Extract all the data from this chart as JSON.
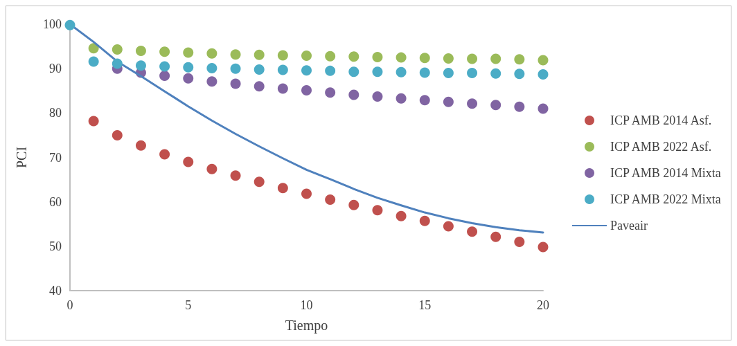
{
  "chart_data": {
    "type": "scatter",
    "xlabel": "Tiempo",
    "ylabel": "PCI",
    "x": [
      0,
      1,
      2,
      3,
      4,
      5,
      6,
      7,
      8,
      9,
      10,
      11,
      12,
      13,
      14,
      15,
      16,
      17,
      18,
      19,
      20
    ],
    "xlim": [
      0,
      20
    ],
    "xticks": [
      0,
      5,
      10,
      15,
      20
    ],
    "ylim": [
      40,
      100
    ],
    "yticks": [
      40,
      50,
      60,
      70,
      80,
      90,
      100
    ],
    "grid": false,
    "legend": "right",
    "marker": "circle",
    "series": [
      {
        "name": "ICP AMB 2014 Asf.",
        "color": "#c0504d",
        "values": [
          null,
          78.2,
          75.0,
          72.7,
          70.7,
          69.0,
          67.4,
          65.9,
          64.5,
          63.1,
          61.8,
          60.5,
          59.3,
          58.1,
          56.8,
          55.7,
          54.5,
          53.3,
          52.1,
          51.0,
          49.8
        ]
      },
      {
        "name": "ICP AMB 2022 Asf.",
        "color": "#9bbb59",
        "values": [
          null,
          94.6,
          94.3,
          94.0,
          93.8,
          93.6,
          93.4,
          93.2,
          93.1,
          93.0,
          92.9,
          92.8,
          92.7,
          92.6,
          92.5,
          92.4,
          92.3,
          92.2,
          92.2,
          92.1,
          91.9
        ]
      },
      {
        "name": "ICP AMB 2014 Mixta",
        "color": "#8064a2",
        "values": [
          null,
          null,
          90.0,
          89.1,
          88.4,
          87.8,
          87.1,
          86.6,
          86.0,
          85.5,
          85.1,
          84.6,
          84.1,
          83.7,
          83.3,
          82.9,
          82.5,
          82.1,
          81.8,
          81.4,
          81.0
        ]
      },
      {
        "name": "ICP AMB 2022 Mixta",
        "color": "#4bacc6",
        "values": [
          99.8,
          91.6,
          91.1,
          90.7,
          90.5,
          90.3,
          90.1,
          90.0,
          89.8,
          89.7,
          89.6,
          89.5,
          89.3,
          89.3,
          89.2,
          89.1,
          89.0,
          89.0,
          88.9,
          88.8,
          88.7
        ]
      },
      {
        "name": "Paveair",
        "type": "line",
        "color": "#4f81bd",
        "marker": "none",
        "line_style": "solid",
        "values": [
          100,
          96.0,
          91.6,
          88.3,
          84.9,
          81.5,
          78.3,
          75.3,
          72.5,
          69.8,
          67.2,
          65.1,
          62.9,
          60.9,
          59.2,
          57.6,
          56.3,
          55.2,
          54.3,
          53.6,
          53.1
        ]
      }
    ]
  }
}
